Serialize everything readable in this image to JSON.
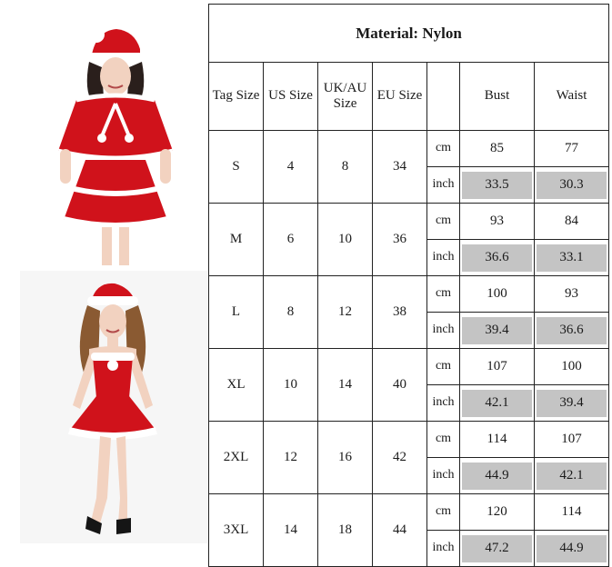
{
  "product": {
    "photos": [
      {
        "name": "red velvet santa costume with cape and skirt"
      },
      {
        "name": "red velvet santa strapless dress"
      }
    ]
  },
  "size_table": {
    "title": "Material: Nylon",
    "headers": {
      "tag_size": "Tag Size",
      "us_size": "US Size",
      "uk_au": "UK/AU Size",
      "eu_size": "EU Size",
      "unit": "",
      "bust": "Bust",
      "waist": "Waist"
    },
    "units": {
      "cm": "cm",
      "inch": "inch"
    },
    "rows": [
      {
        "tag": "S",
        "us": "4",
        "uk": "8",
        "eu": "34",
        "bust_cm": "85",
        "waist_cm": "77",
        "bust_in": "33.5",
        "waist_in": "30.3"
      },
      {
        "tag": "M",
        "us": "6",
        "uk": "10",
        "eu": "36",
        "bust_cm": "93",
        "waist_cm": "84",
        "bust_in": "36.6",
        "waist_in": "33.1"
      },
      {
        "tag": "L",
        "us": "8",
        "uk": "12",
        "eu": "38",
        "bust_cm": "100",
        "waist_cm": "93",
        "bust_in": "39.4",
        "waist_in": "36.6"
      },
      {
        "tag": "XL",
        "us": "10",
        "uk": "14",
        "eu": "40",
        "bust_cm": "107",
        "waist_cm": "100",
        "bust_in": "42.1",
        "waist_in": "39.4"
      },
      {
        "tag": "2XL",
        "us": "12",
        "uk": "16",
        "eu": "42",
        "bust_cm": "114",
        "waist_cm": "107",
        "bust_in": "44.9",
        "waist_in": "42.1"
      },
      {
        "tag": "3XL",
        "us": "14",
        "uk": "18",
        "eu": "44",
        "bust_cm": "120",
        "waist_cm": "114",
        "bust_in": "47.2",
        "waist_in": "44.9"
      }
    ]
  },
  "colors": {
    "costume_red": "#d0121b",
    "fur_white": "#ffffff",
    "inch_shading": "#c4c4c4",
    "grid_line": "#222222"
  }
}
